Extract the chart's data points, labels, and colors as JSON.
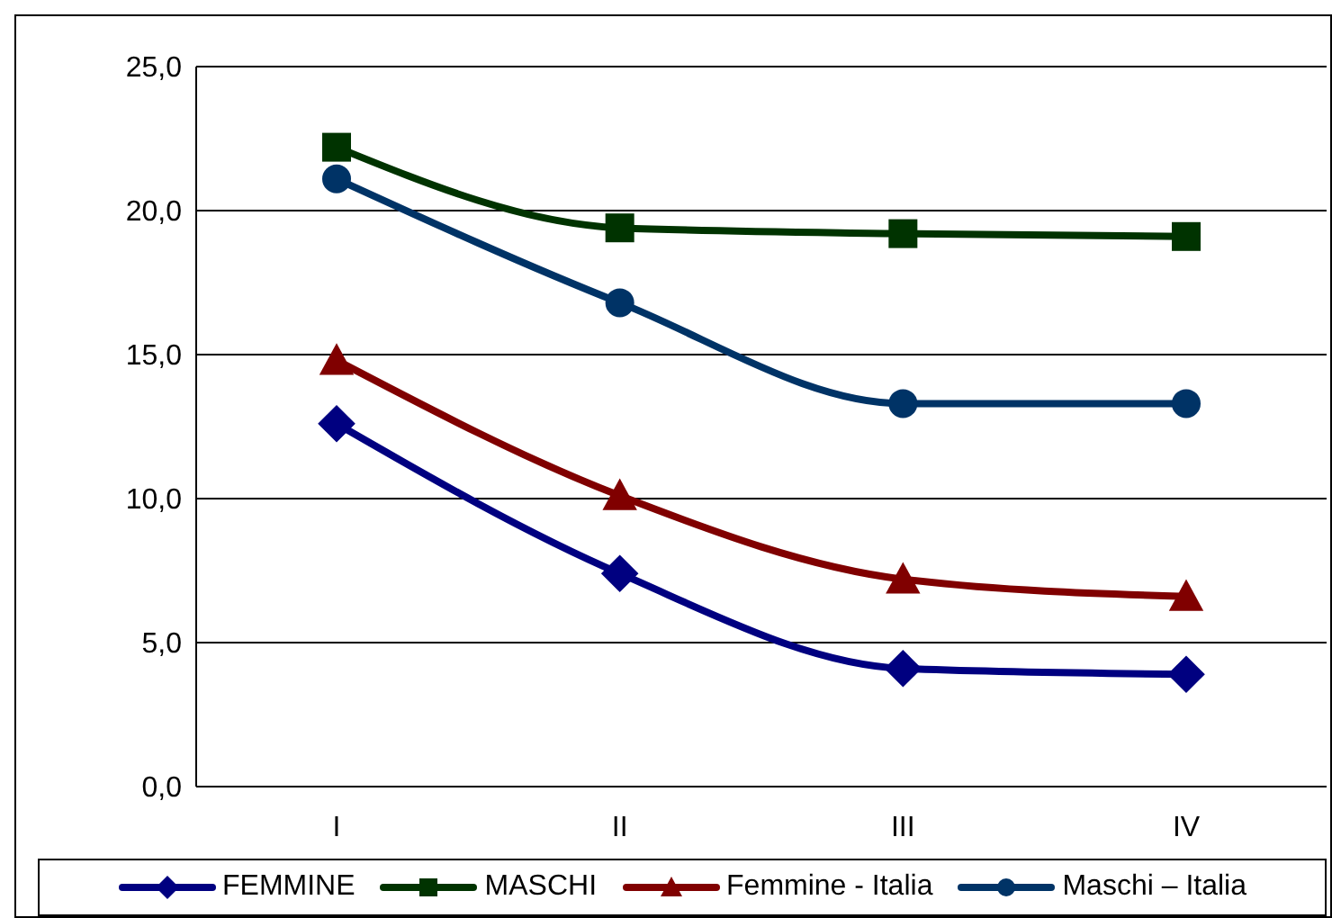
{
  "chart_data": {
    "type": "line",
    "categories": [
      "I",
      "II",
      "III",
      "IV"
    ],
    "series": [
      {
        "name": "FEMMINE",
        "color": "#000080",
        "marker": "diamond",
        "values": [
          12.6,
          7.4,
          4.1,
          3.9
        ]
      },
      {
        "name": "MASCHI",
        "color": "#003300",
        "marker": "square",
        "values": [
          22.2,
          19.4,
          19.2,
          19.1
        ]
      },
      {
        "name": "Femmine - Italia",
        "color": "#800000",
        "marker": "triangle",
        "values": [
          14.8,
          10.1,
          7.2,
          6.6
        ]
      },
      {
        "name": "Maschi – Italia",
        "color": "#003366",
        "marker": "circle",
        "values": [
          21.1,
          16.8,
          13.3,
          13.3
        ]
      }
    ],
    "ylim": [
      0,
      25
    ],
    "yticks": [
      {
        "value": 0,
        "label": "0,0"
      },
      {
        "value": 5,
        "label": "5,0"
      },
      {
        "value": 10,
        "label": "10,0"
      },
      {
        "value": 15,
        "label": "15,0"
      },
      {
        "value": 20,
        "label": "20,0"
      },
      {
        "value": 25,
        "label": "25,0"
      }
    ],
    "grid": "y",
    "legend": "bottom"
  }
}
